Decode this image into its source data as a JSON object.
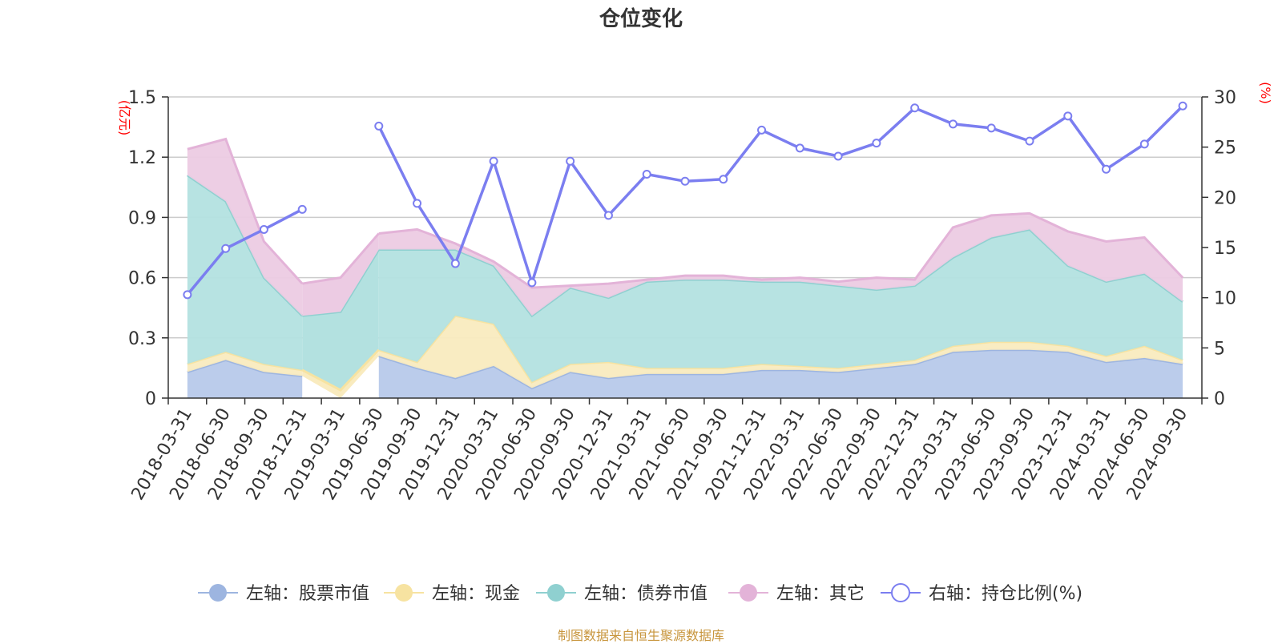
{
  "chart_data": {
    "type": "area",
    "title": "仓位变化",
    "categories": [
      "2018-03-31",
      "2018-06-30",
      "2018-09-30",
      "2018-12-31",
      "2019-03-31",
      "2019-06-30",
      "2019-09-30",
      "2019-12-31",
      "2020-03-31",
      "2020-06-30",
      "2020-09-30",
      "2020-12-31",
      "2021-03-31",
      "2021-06-30",
      "2021-09-30",
      "2021-12-31",
      "2022-03-31",
      "2022-06-30",
      "2022-09-30",
      "2022-12-31",
      "2023-03-31",
      "2023-06-30",
      "2023-09-30",
      "2023-12-31",
      "2024-03-31",
      "2024-06-30",
      "2024-09-30"
    ],
    "left_axis": {
      "label": "(亿元)",
      "min": 0,
      "max": 1.5,
      "ticks": [
        "0",
        "0.3",
        "0.6",
        "0.9",
        "1.2",
        "1.5"
      ],
      "tick_values": [
        0,
        0.3,
        0.6,
        0.9,
        1.2,
        1.5
      ]
    },
    "right_axis": {
      "label": "(%)",
      "min": 0,
      "max": 30,
      "ticks": [
        "0",
        "5",
        "10",
        "15",
        "20",
        "25",
        "30"
      ],
      "tick_values": [
        0,
        5,
        10,
        15,
        20,
        25,
        30
      ]
    },
    "stacked_series": [
      {
        "name": "左轴：股票市值",
        "color": "#9db5e0",
        "fill": "#b7c9ea",
        "values": [
          0.13,
          0.19,
          0.13,
          0.11,
          null,
          0.21,
          0.15,
          0.1,
          0.16,
          0.05,
          0.13,
          0.1,
          0.12,
          0.12,
          0.12,
          0.14,
          0.14,
          0.13,
          0.15,
          0.17,
          0.23,
          0.24,
          0.24,
          0.23,
          0.18,
          0.2,
          0.17
        ]
      },
      {
        "name": "左轴：现金",
        "color": "#f7e3a1",
        "fill": "#f9ebbf",
        "values": [
          0.04,
          0.04,
          0.04,
          0.03,
          0.04,
          0.03,
          0.03,
          0.31,
          0.21,
          0.03,
          0.04,
          0.08,
          0.03,
          0.03,
          0.03,
          0.03,
          0.02,
          0.02,
          0.02,
          0.02,
          0.03,
          0.04,
          0.04,
          0.03,
          0.03,
          0.06,
          0.02
        ]
      },
      {
        "name": "左轴：债券市值",
        "color": "#8fd0d0",
        "fill": "#b3e1e0",
        "values": [
          0.94,
          0.75,
          0.43,
          0.27,
          0.39,
          0.5,
          0.56,
          0.33,
          0.29,
          0.33,
          0.38,
          0.32,
          0.43,
          0.44,
          0.44,
          0.41,
          0.42,
          0.41,
          0.37,
          0.37,
          0.44,
          0.52,
          0.56,
          0.4,
          0.37,
          0.36,
          0.29
        ]
      },
      {
        "name": "左轴：其它",
        "color": "#e3b3d8",
        "fill": "#eccbe3",
        "values": [
          0.13,
          0.31,
          0.18,
          0.16,
          0.17,
          0.08,
          0.1,
          0.03,
          0.02,
          0.14,
          0.01,
          0.07,
          0.01,
          0.02,
          0.02,
          0.01,
          0.02,
          0.02,
          0.06,
          0.03,
          0.15,
          0.11,
          0.08,
          0.17,
          0.2,
          0.18,
          0.12
        ]
      }
    ],
    "line_series": {
      "name": "右轴：持仓比例(%)",
      "color": "#7b7ef0",
      "values": [
        10.3,
        14.9,
        16.8,
        18.8,
        null,
        27.1,
        19.4,
        13.4,
        23.6,
        11.5,
        23.6,
        18.2,
        22.3,
        21.6,
        21.8,
        26.7,
        24.9,
        24.1,
        25.4,
        28.9,
        27.3,
        26.9,
        25.6,
        28.1,
        22.8,
        25.3,
        29.1
      ]
    },
    "legend": [
      "左轴：股票市值",
      "左轴：现金",
      "左轴：债券市值",
      "左轴：其它",
      "右轴：持仓比例(%)"
    ],
    "legend_position": "bottom-center",
    "grid": true
  },
  "source_note": "制图数据来自恒生聚源数据库",
  "colors": {
    "axis_label": "#ff0000",
    "grid": "#cccccc",
    "axis": "#333333",
    "source": "#c8963e"
  }
}
